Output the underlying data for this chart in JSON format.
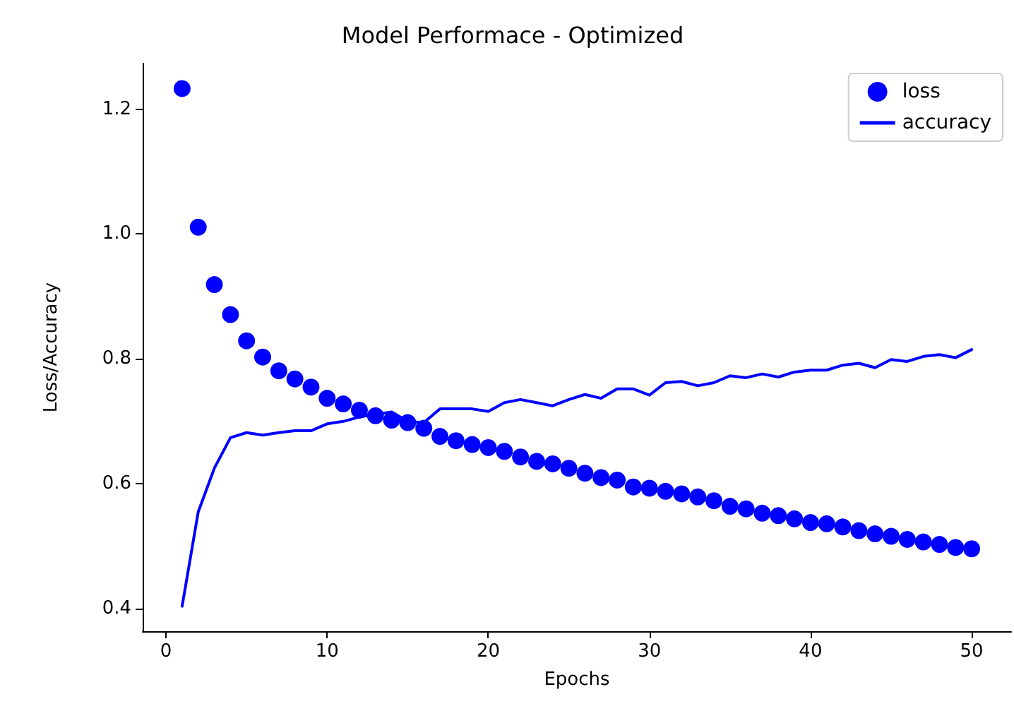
{
  "chart_data": {
    "type": "line",
    "title": "Model Performace - Optimized",
    "xlabel": "Epochs",
    "ylabel": "Loss/Accuracy",
    "x": [
      1,
      2,
      3,
      4,
      5,
      6,
      7,
      8,
      9,
      10,
      11,
      12,
      13,
      14,
      15,
      16,
      17,
      18,
      19,
      20,
      21,
      22,
      23,
      24,
      25,
      26,
      27,
      28,
      29,
      30,
      31,
      32,
      33,
      34,
      35,
      36,
      37,
      38,
      39,
      40,
      41,
      42,
      43,
      44,
      45,
      46,
      47,
      48,
      49,
      50
    ],
    "series": [
      {
        "name": "loss",
        "type": "scatter",
        "marker": "circle",
        "color": "#0000ff",
        "values": [
          1.233,
          1.011,
          0.919,
          0.871,
          0.829,
          0.803,
          0.781,
          0.768,
          0.755,
          0.737,
          0.728,
          0.718,
          0.709,
          0.702,
          0.698,
          0.689,
          0.676,
          0.669,
          0.663,
          0.658,
          0.652,
          0.643,
          0.636,
          0.632,
          0.625,
          0.617,
          0.61,
          0.606,
          0.595,
          0.593,
          0.588,
          0.584,
          0.579,
          0.573,
          0.564,
          0.56,
          0.553,
          0.549,
          0.544,
          0.538,
          0.536,
          0.531,
          0.525,
          0.52,
          0.516,
          0.511,
          0.507,
          0.503,
          0.498,
          0.496
        ]
      },
      {
        "name": "accuracy",
        "marker": "none",
        "line_style": "solid",
        "color": "#0000ff",
        "values": [
          0.404,
          0.555,
          0.625,
          0.674,
          0.682,
          0.678,
          0.682,
          0.685,
          0.685,
          0.696,
          0.7,
          0.707,
          0.711,
          0.715,
          0.7,
          0.698,
          0.72,
          0.72,
          0.72,
          0.716,
          0.73,
          0.735,
          0.73,
          0.725,
          0.735,
          0.743,
          0.737,
          0.752,
          0.752,
          0.742,
          0.762,
          0.764,
          0.757,
          0.762,
          0.773,
          0.77,
          0.776,
          0.771,
          0.779,
          0.782,
          0.782,
          0.79,
          0.793,
          0.786,
          0.799,
          0.796,
          0.804,
          0.807,
          0.802,
          0.815
        ]
      }
    ],
    "xlim": [
      -1.45,
      52.45
    ],
    "xticks": [
      0,
      10,
      20,
      30,
      40,
      50
    ],
    "ylim": [
      0.364,
      1.273
    ],
    "yticks": [
      0.4,
      0.6,
      0.8,
      {
        "value": 1,
        "label": "1.0"
      },
      1.2
    ],
    "grid": false,
    "legend": "top right"
  }
}
